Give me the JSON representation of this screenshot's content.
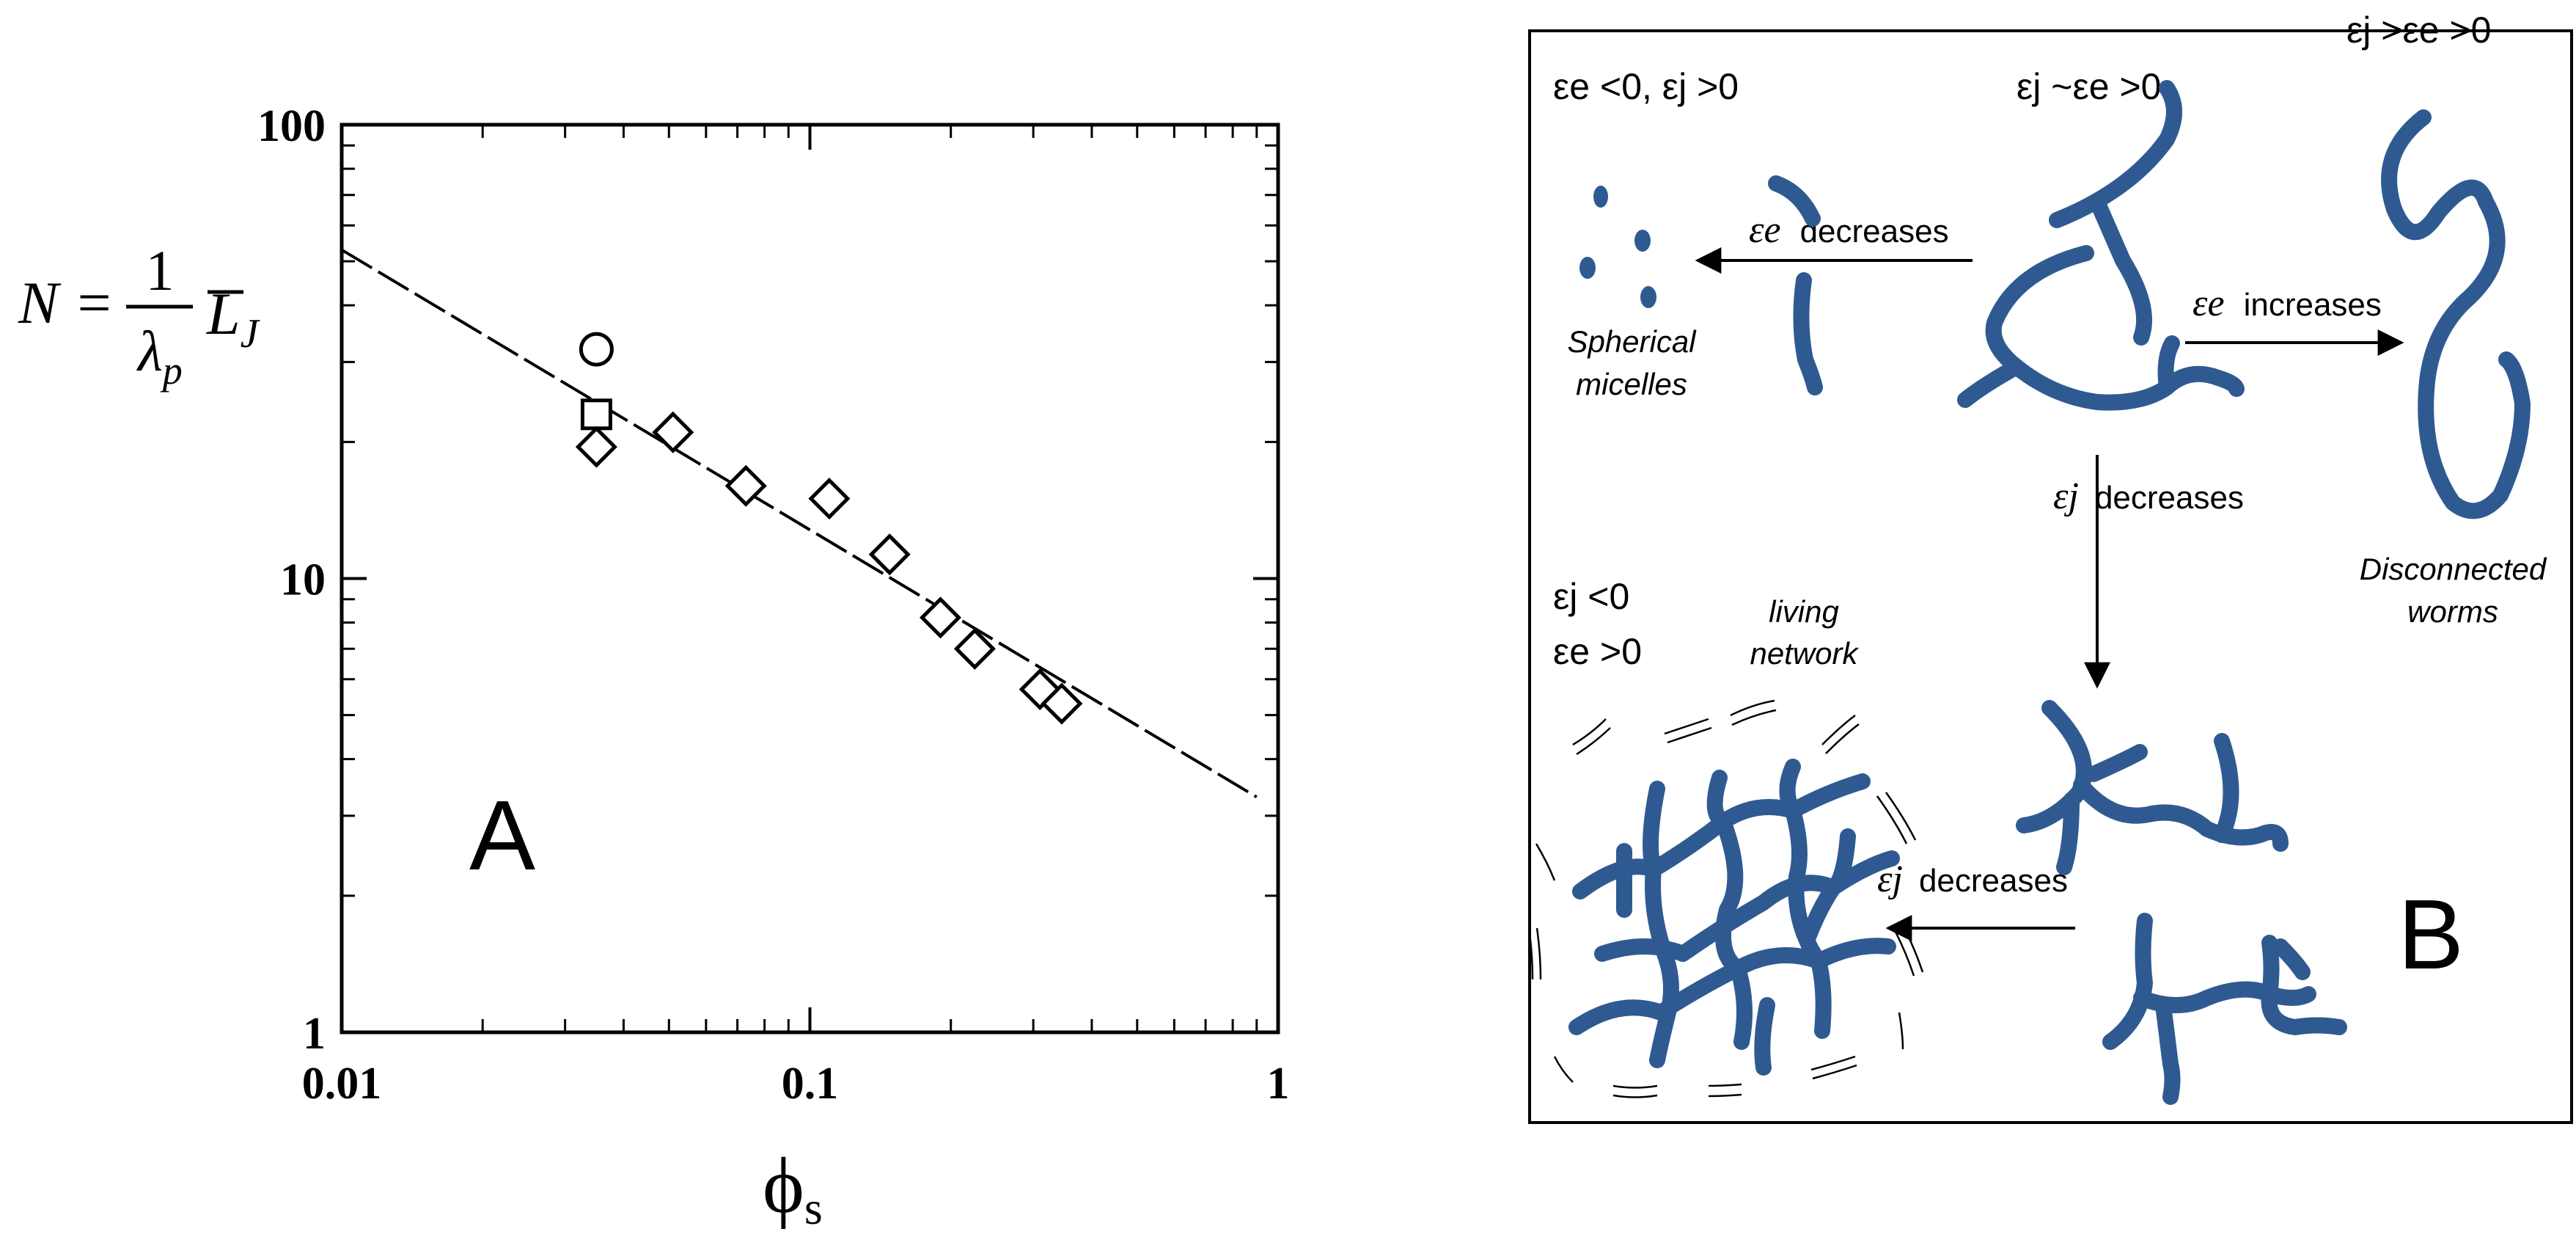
{
  "panel_a": {
    "letter": "A",
    "ylabel": {
      "lhs": "N =",
      "num": "1",
      "den_base": "λ",
      "den_sub": "p",
      "rhs_base": "L",
      "rhs_sub": "J"
    },
    "xlabel": {
      "base": "ϕ",
      "sub": "s"
    }
  },
  "chart_data": {
    "type": "scatter",
    "xscale": "log",
    "yscale": "log",
    "xlim": [
      0.01,
      1
    ],
    "ylim": [
      1,
      100
    ],
    "xticks": [
      {
        "v": 0.01,
        "label": "0.01"
      },
      {
        "v": 0.1,
        "label": "0.1"
      },
      {
        "v": 1,
        "label": "1"
      }
    ],
    "yticks": [
      {
        "v": 1,
        "label": "1"
      },
      {
        "v": 10,
        "label": "10"
      },
      {
        "v": 100,
        "label": "100"
      }
    ],
    "fit_line": {
      "style": "dashed",
      "x": [
        0.01,
        0.9
      ],
      "y": [
        53,
        3.3
      ]
    },
    "series": [
      {
        "name": "circle",
        "marker": "circle",
        "x": [
          0.035
        ],
        "y": [
          32
        ]
      },
      {
        "name": "square",
        "marker": "square",
        "x": [
          0.035
        ],
        "y": [
          23
        ]
      },
      {
        "name": "diamond",
        "marker": "diamond",
        "x": [
          0.035,
          0.051,
          0.073,
          0.11,
          0.148,
          0.19,
          0.225,
          0.31,
          0.345
        ],
        "y": [
          19.5,
          21,
          16,
          15,
          11.3,
          8.2,
          7,
          5.7,
          5.3
        ]
      }
    ]
  },
  "panel_b": {
    "letter": "B",
    "cond_spherical": "εe <0, εj >0",
    "cond_center": "εj ~εe >0",
    "cond_worms": "εj >εe >0",
    "cond_network_1": "εj <0",
    "cond_network_2": "εe >0",
    "label_spherical_1": "Spherical",
    "label_spherical_2": "micelles",
    "label_worms_1": "Disconnected",
    "label_worms_2": "worms",
    "label_network_1": "living",
    "label_network_2": "network",
    "arrow_left_var": "εe",
    "arrow_left_text": "decreases",
    "arrow_right_var": "εe",
    "arrow_right_text": "increases",
    "arrow_down_var": "εj",
    "arrow_down_text": "decreases",
    "arrow_bottom_var": "εj",
    "arrow_bottom_text": "decreases",
    "micelle_color": "#2f5a91"
  }
}
